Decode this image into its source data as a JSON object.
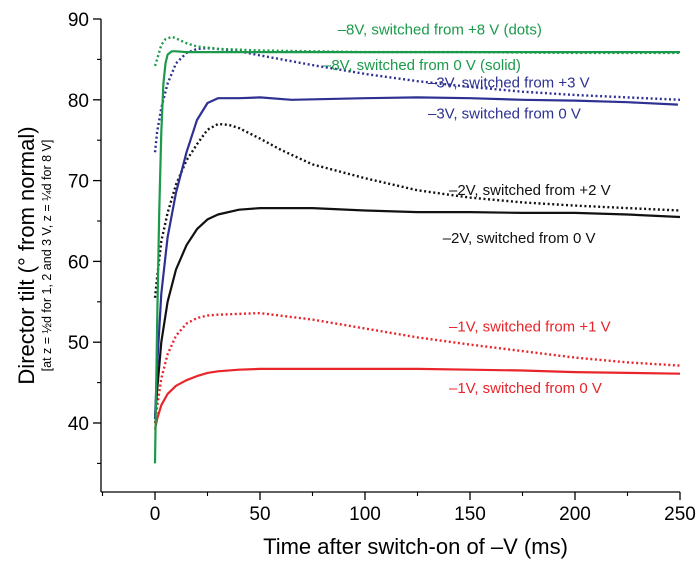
{
  "chart_data": {
    "type": "line",
    "xlabel": "Time after switch-on of –V (ms)",
    "ylabel": "Director tilt (° from normal)",
    "ylabel_sub": "[at z = ½d for 1, 2 and 3 V, z = ¼d for 8 V]",
    "xlim": [
      -25,
      250
    ],
    "ylim": [
      35,
      90
    ],
    "x_ticks": [
      0,
      50,
      100,
      150,
      200,
      250
    ],
    "y_ticks": [
      40,
      50,
      60,
      70,
      80,
      90
    ],
    "grid": false,
    "colors": {
      "red": "#e8252a",
      "black": "#111111",
      "blue": "#2e3192",
      "green": "#1a9a4a"
    },
    "series": [
      {
        "id": "v1-from-0",
        "color": "red",
        "style": "solid",
        "x": [
          0,
          1,
          3,
          6,
          10,
          15,
          20,
          25,
          30,
          40,
          50,
          75,
          100,
          125,
          150,
          175,
          200,
          225,
          250
        ],
        "y": [
          39.2,
          40.5,
          42.2,
          43.6,
          44.6,
          45.3,
          45.8,
          46.2,
          46.4,
          46.6,
          46.7,
          46.7,
          46.7,
          46.7,
          46.6,
          46.5,
          46.3,
          46.2,
          46.1
        ]
      },
      {
        "id": "v1-from-1",
        "color": "red",
        "style": "dotted",
        "x": [
          0,
          1,
          3,
          6,
          10,
          15,
          20,
          25,
          30,
          40,
          50,
          75,
          100,
          125,
          150,
          175,
          200,
          225,
          250
        ],
        "y": [
          40.0,
          42.0,
          45.5,
          48.5,
          50.8,
          52.3,
          53.0,
          53.3,
          53.4,
          53.5,
          53.6,
          52.8,
          51.7,
          50.6,
          49.7,
          48.9,
          48.1,
          47.5,
          47.1
        ]
      },
      {
        "id": "v2-from-0",
        "color": "black",
        "style": "solid",
        "x": [
          0,
          1,
          3,
          6,
          10,
          15,
          20,
          25,
          30,
          40,
          50,
          75,
          100,
          125,
          150,
          175,
          200,
          225,
          250
        ],
        "y": [
          40.5,
          44.0,
          50.0,
          55.0,
          59.0,
          62.0,
          64.0,
          65.2,
          65.8,
          66.4,
          66.6,
          66.6,
          66.3,
          66.1,
          66.1,
          66.0,
          66.0,
          65.8,
          65.5
        ]
      },
      {
        "id": "v2-from-2",
        "color": "black",
        "style": "dotted",
        "x": [
          0,
          1,
          3,
          6,
          10,
          15,
          20,
          25,
          30,
          35,
          40,
          50,
          60,
          75,
          100,
          125,
          150,
          175,
          200,
          225,
          250
        ],
        "y": [
          55.5,
          58.0,
          62.5,
          66.0,
          69.5,
          72.5,
          74.5,
          76.3,
          77.0,
          76.9,
          76.5,
          75.2,
          73.8,
          72.0,
          70.3,
          68.8,
          67.9,
          67.3,
          66.9,
          66.6,
          66.3
        ]
      },
      {
        "id": "v3-from-0",
        "color": "blue",
        "style": "solid",
        "x": [
          0,
          1,
          3,
          6,
          10,
          15,
          20,
          25,
          30,
          40,
          50,
          65,
          100,
          125,
          150,
          175,
          200,
          225,
          249
        ],
        "y": [
          40.5,
          47.0,
          56.0,
          63.0,
          68.5,
          73.5,
          77.5,
          79.6,
          80.2,
          80.2,
          80.3,
          80.0,
          80.2,
          80.3,
          80.2,
          80.0,
          79.9,
          79.7,
          79.4
        ]
      },
      {
        "id": "v3-from-3",
        "color": "blue",
        "style": "dotted",
        "x": [
          0,
          1,
          3,
          6,
          10,
          15,
          20,
          25,
          30,
          40,
          50,
          75,
          100,
          125,
          150,
          175,
          200,
          225,
          250
        ],
        "y": [
          73.5,
          76.0,
          79.0,
          82.0,
          84.5,
          85.8,
          86.3,
          86.4,
          86.3,
          86.0,
          85.5,
          84.3,
          83.2,
          82.3,
          81.6,
          81.0,
          80.6,
          80.3,
          80.0
        ]
      },
      {
        "id": "v8-from-0",
        "color": "green",
        "style": "solid",
        "x": [
          0,
          1,
          2,
          3,
          4,
          5,
          6,
          8,
          10,
          15,
          20,
          50,
          100,
          150,
          200,
          250
        ],
        "y": [
          35.0,
          52.0,
          66.0,
          76.0,
          82.0,
          84.5,
          85.6,
          86.0,
          86.0,
          85.9,
          85.9,
          85.9,
          85.9,
          85.9,
          85.9,
          85.9
        ]
      },
      {
        "id": "v8-from-8",
        "color": "green",
        "style": "dotted",
        "x": [
          0,
          1,
          3,
          5,
          8,
          10,
          15,
          20,
          30,
          50,
          75,
          100,
          150,
          200,
          250
        ],
        "y": [
          84.2,
          85.0,
          86.8,
          87.5,
          87.8,
          87.6,
          87.0,
          86.6,
          86.3,
          86.1,
          86.0,
          85.9,
          85.9,
          85.8,
          85.8
        ]
      }
    ],
    "annotations": [
      {
        "id": "ann-v8-dots",
        "text": "–8V, switched from +8 V (dots)",
        "color": "green",
        "x": 87,
        "y": 88.1
      },
      {
        "id": "ann-v8-solid",
        "text": "–8V, switched from 0 V (solid)",
        "color": "green",
        "x": 80,
        "y": 83.7
      },
      {
        "id": "ann-v3-dots",
        "text": "–3V, switched from +3 V",
        "color": "blue",
        "x": 130,
        "y": 81.5
      },
      {
        "id": "ann-v3-solid",
        "text": "–3V, switched from 0 V",
        "color": "blue",
        "x": 130,
        "y": 77.7
      },
      {
        "id": "ann-v2-dots",
        "text": "–2V, switched from +2 V",
        "color": "black",
        "x": 140,
        "y": 68.2
      },
      {
        "id": "ann-v2-solid",
        "text": "–2V, switched from 0 V",
        "color": "black",
        "x": 137,
        "y": 62.3
      },
      {
        "id": "ann-v1-dots",
        "text": "–1V, switched from +1 V",
        "color": "red",
        "x": 140,
        "y": 51.3
      },
      {
        "id": "ann-v1-solid",
        "text": "–1V, switched from 0 V",
        "color": "red",
        "x": 140,
        "y": 43.7
      }
    ]
  }
}
